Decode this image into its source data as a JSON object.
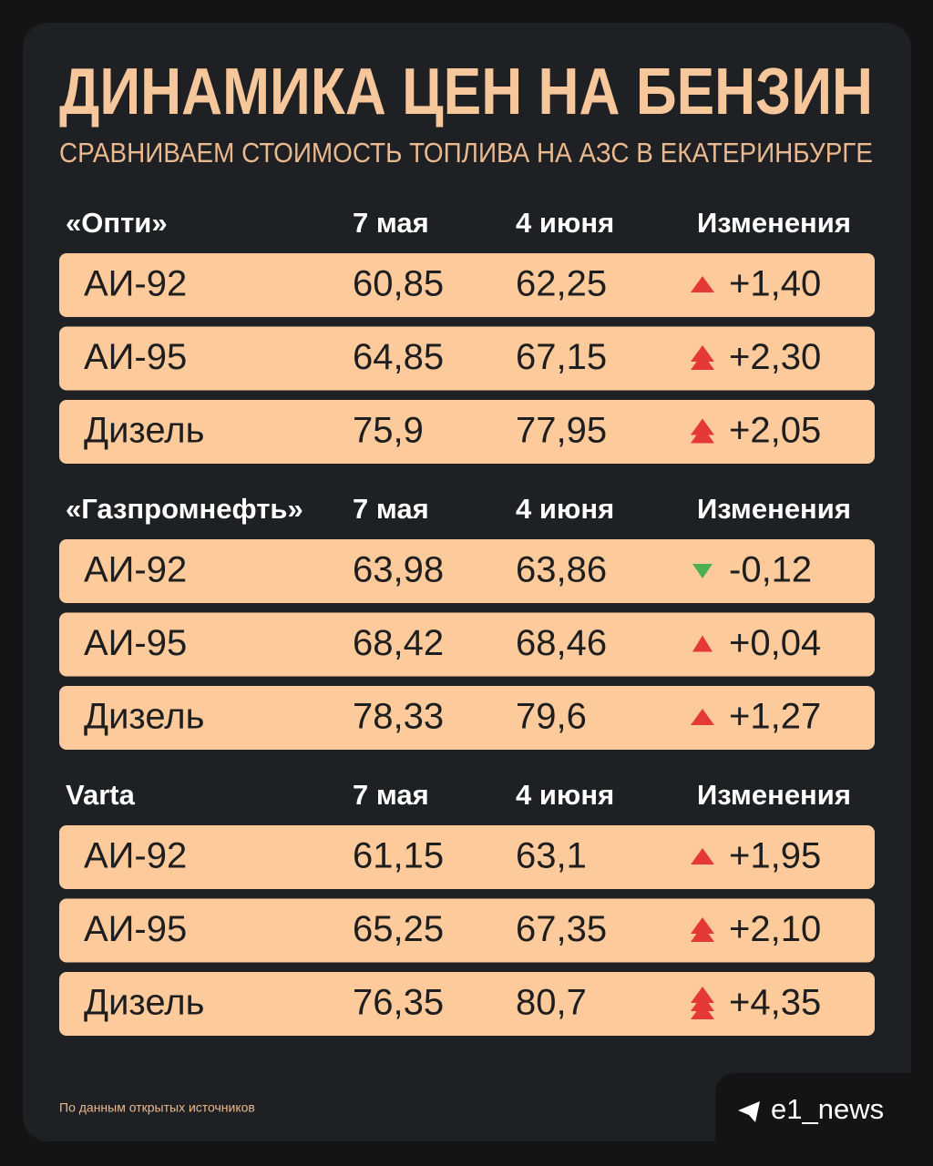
{
  "header": {
    "title": "ДИНАМИКА ЦЕН НА БЕНЗИН",
    "subtitle": "СРАВНИВАЕМ СТОИМОСТЬ ТОПЛИВА НА АЗС В ЕКАТЕРИНБУРГЕ"
  },
  "sections": [
    {
      "name": "«Опти»",
      "columns": [
        "7 мая",
        "4 июня",
        "Изменения"
      ],
      "rows": [
        [
          "АИ-92",
          "60,85",
          "62,25",
          "+1,40"
        ],
        [
          "АИ-95",
          "64,85",
          "67,15",
          "+2,30"
        ],
        [
          "Дизель",
          "75,9",
          "77,95",
          "+2,05"
        ]
      ]
    },
    {
      "name": "«Газпромнефть»",
      "columns": [
        "7 мая",
        "4 июня",
        "Изменения"
      ],
      "rows": [
        [
          "АИ-92",
          "63,98",
          "63,86",
          "-0,12"
        ],
        [
          "АИ-95",
          "68,42",
          "68,46",
          "+0,04"
        ],
        [
          "Дизель",
          "78,33",
          "79,6",
          "+1,27"
        ]
      ]
    },
    {
      "name": "Varta",
      "columns": [
        "7 мая",
        "4 июня",
        "Изменения"
      ],
      "rows": [
        [
          "АИ-92",
          "61,15",
          "63,1",
          "+1,95"
        ],
        [
          "АИ-95",
          "65,25",
          "67,35",
          "+2,10"
        ],
        [
          "Дизель",
          "76,35",
          "80,7",
          "+4,35"
        ]
      ]
    }
  ],
  "footer": {
    "source": "По данным открытых источников",
    "brand": "e1_news"
  }
}
